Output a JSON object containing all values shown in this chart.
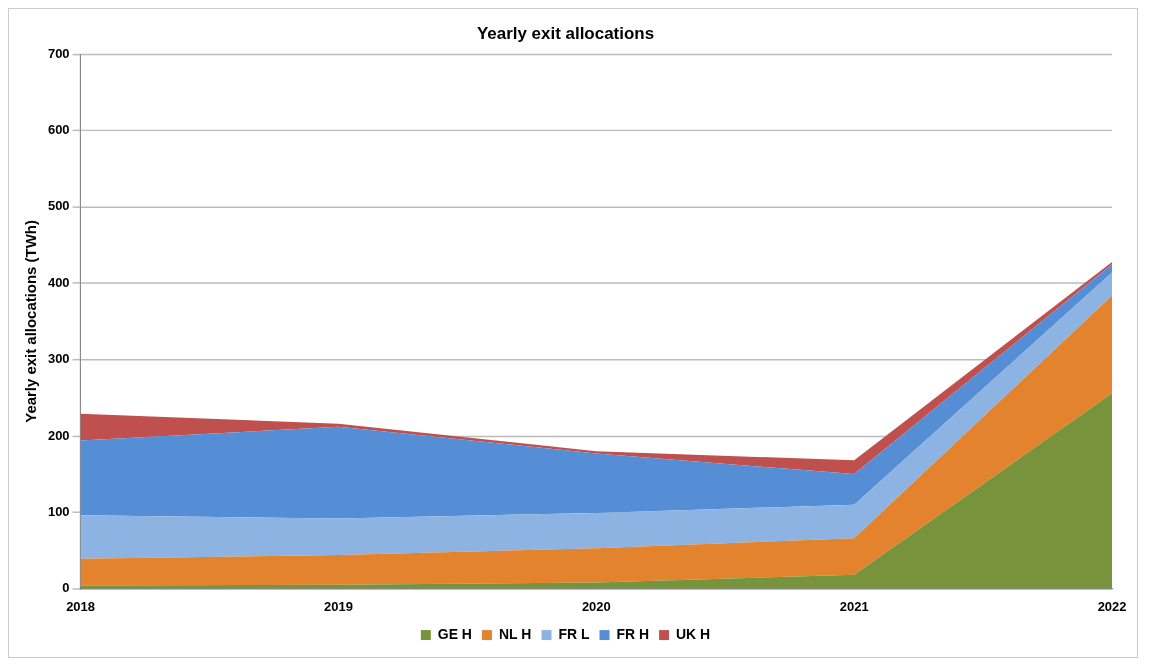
{
  "chart_data": {
    "type": "area",
    "stacked": true,
    "title": "Yearly exit allocations",
    "ylabel": "Yearly exit allocations (TWh)",
    "categories": [
      "2018",
      "2019",
      "2020",
      "2021",
      "2022"
    ],
    "series": [
      {
        "name": "GE H",
        "color": "#77933c",
        "values": [
          4,
          5,
          8,
          18,
          256
        ]
      },
      {
        "name": "NL H",
        "color": "#e3832e",
        "values": [
          35,
          39,
          45,
          48,
          128
        ]
      },
      {
        "name": "FR L",
        "color": "#8db3e2",
        "values": [
          57,
          48,
          46,
          44,
          30
        ]
      },
      {
        "name": "FR H",
        "color": "#558ed5",
        "values": [
          98,
          120,
          78,
          40,
          11
        ]
      },
      {
        "name": "UK H",
        "color": "#c0504d",
        "values": [
          35,
          4,
          3,
          18,
          3
        ]
      }
    ],
    "ylim": [
      0,
      700
    ],
    "yticks": [
      0,
      100,
      200,
      300,
      400,
      500,
      600,
      700
    ],
    "grid": "y",
    "legend": "bottom"
  }
}
